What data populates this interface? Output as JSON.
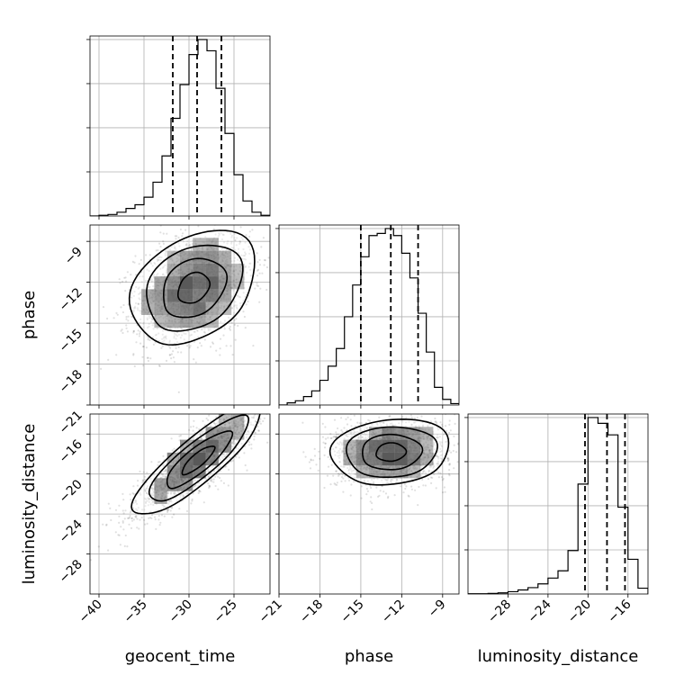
{
  "chart_data": {
    "type": "corner",
    "parameters": [
      "geocent_time",
      "phase",
      "luminosity_distance"
    ],
    "labels": {
      "geocent_time": "geocent_time",
      "phase": "phase",
      "luminosity_distance": "luminosity_distance"
    },
    "ranges": {
      "geocent_time": [
        -41,
        -21
      ],
      "phase": [
        -21,
        -7.8
      ],
      "luminosity_distance": [
        -32,
        -14
      ]
    },
    "ticks": {
      "geocent_time": [
        -40,
        -35,
        -30,
        -25
      ],
      "phase": [
        -21,
        -18,
        -15,
        -12,
        -9
      ],
      "luminosity_distance": [
        -28,
        -24,
        -20,
        -16
      ]
    },
    "quantiles": {
      "geocent_time": [
        -31.8,
        -29.1,
        -26.4
      ],
      "phase": [
        -15.0,
        -12.8,
        -10.8
      ],
      "luminosity_distance": [
        -20.3,
        -18.1,
        -16.3
      ]
    },
    "histograms": {
      "geocent_time": {
        "edges": [
          -41,
          -40,
          -39,
          -38,
          -37,
          -36,
          -35,
          -34,
          -33,
          -32,
          -31,
          -30,
          -29,
          -28,
          -27,
          -26,
          -25,
          -24,
          -23,
          -22,
          -21
        ],
        "counts": [
          0,
          1,
          2,
          5,
          10,
          15,
          25,
          45,
          80,
          130,
          175,
          215,
          235,
          220,
          170,
          110,
          55,
          20,
          5,
          1
        ]
      },
      "phase": {
        "edges": [
          -21,
          -20.4,
          -19.8,
          -19.2,
          -18.6,
          -18,
          -17.4,
          -16.8,
          -16.2,
          -15.6,
          -15,
          -14.4,
          -13.8,
          -13.2,
          -12.6,
          -12,
          -11.4,
          -10.8,
          -10.2,
          -9.6,
          -9,
          -8.4,
          -7.8
        ],
        "counts": [
          0,
          3,
          6,
          12,
          20,
          35,
          55,
          80,
          125,
          170,
          210,
          240,
          243,
          250,
          240,
          215,
          180,
          130,
          75,
          25,
          8,
          2
        ]
      },
      "luminosity_distance": {
        "edges": [
          -32,
          -31,
          -30,
          -29,
          -28,
          -27,
          -26,
          -25,
          -24,
          -23,
          -22,
          -21,
          -20,
          -19,
          -18,
          -17,
          -16,
          -15,
          -14
        ],
        "counts": [
          1,
          1,
          2,
          4,
          8,
          14,
          22,
          35,
          55,
          80,
          150,
          380,
          610,
          590,
          550,
          300,
          120,
          20
        ]
      }
    },
    "pairs": [
      {
        "x": "geocent_time",
        "y": "phase",
        "mean": [
          -29.5,
          -12.4
        ],
        "sd": [
          3.2,
          2.0
        ],
        "rho": 0.3
      },
      {
        "x": "geocent_time",
        "y": "luminosity_distance",
        "mean": [
          -29.0,
          -18.6
        ],
        "sd": [
          3.3,
          2.6
        ],
        "rho": 0.85
      },
      {
        "x": "phase",
        "y": "luminosity_distance",
        "mean": [
          -12.8,
          -17.8
        ],
        "sd": [
          2.0,
          1.6
        ],
        "rho": 0.1
      }
    ],
    "grid": true
  }
}
